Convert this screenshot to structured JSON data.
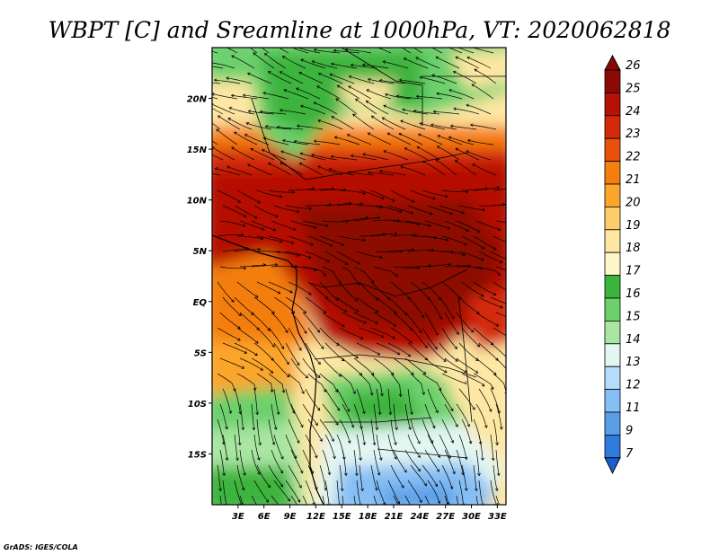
{
  "title": "WBPT [C] and Sreamline at 1000hPa, VT: 2020062818",
  "footer": "GrADS: IGES/COLA",
  "map": {
    "lon_range": [
      0,
      34
    ],
    "lat_range": [
      -20,
      25
    ],
    "x_ticks": [
      {
        "value": 3,
        "label": "3E"
      },
      {
        "value": 6,
        "label": "6E"
      },
      {
        "value": 9,
        "label": "9E"
      },
      {
        "value": 12,
        "label": "12E"
      },
      {
        "value": 15,
        "label": "15E"
      },
      {
        "value": 18,
        "label": "18E"
      },
      {
        "value": 21,
        "label": "21E"
      },
      {
        "value": 24,
        "label": "24E"
      },
      {
        "value": 27,
        "label": "27E"
      },
      {
        "value": 30,
        "label": "30E"
      },
      {
        "value": 33,
        "label": "33E"
      }
    ],
    "y_ticks": [
      {
        "value": 20,
        "label": "20N"
      },
      {
        "value": 15,
        "label": "15N"
      },
      {
        "value": 10,
        "label": "10N"
      },
      {
        "value": 5,
        "label": "5N"
      },
      {
        "value": 0,
        "label": "EQ"
      },
      {
        "value": -5,
        "label": "5S"
      },
      {
        "value": -10,
        "label": "10S"
      },
      {
        "value": -15,
        "label": "15S"
      }
    ]
  },
  "colorbar": {
    "levels": [
      "26",
      "25",
      "24",
      "23",
      "22",
      "21",
      "20",
      "19",
      "18",
      "17",
      "16",
      "15",
      "14",
      "13",
      "12",
      "11",
      "9",
      "7"
    ],
    "colors": [
      "#8c0a05",
      "#b51106",
      "#d42a0a",
      "#e9510d",
      "#f47e10",
      "#fba52b",
      "#fdcd6c",
      "#fde7a3",
      "#fdf6c9",
      "#3cb43c",
      "#6cd06c",
      "#a8e6a2",
      "#e2f6f2",
      "#b6dcfb",
      "#86bff4",
      "#5a9ee8",
      "#2f7bdb",
      "#1a5fd0"
    ]
  }
}
